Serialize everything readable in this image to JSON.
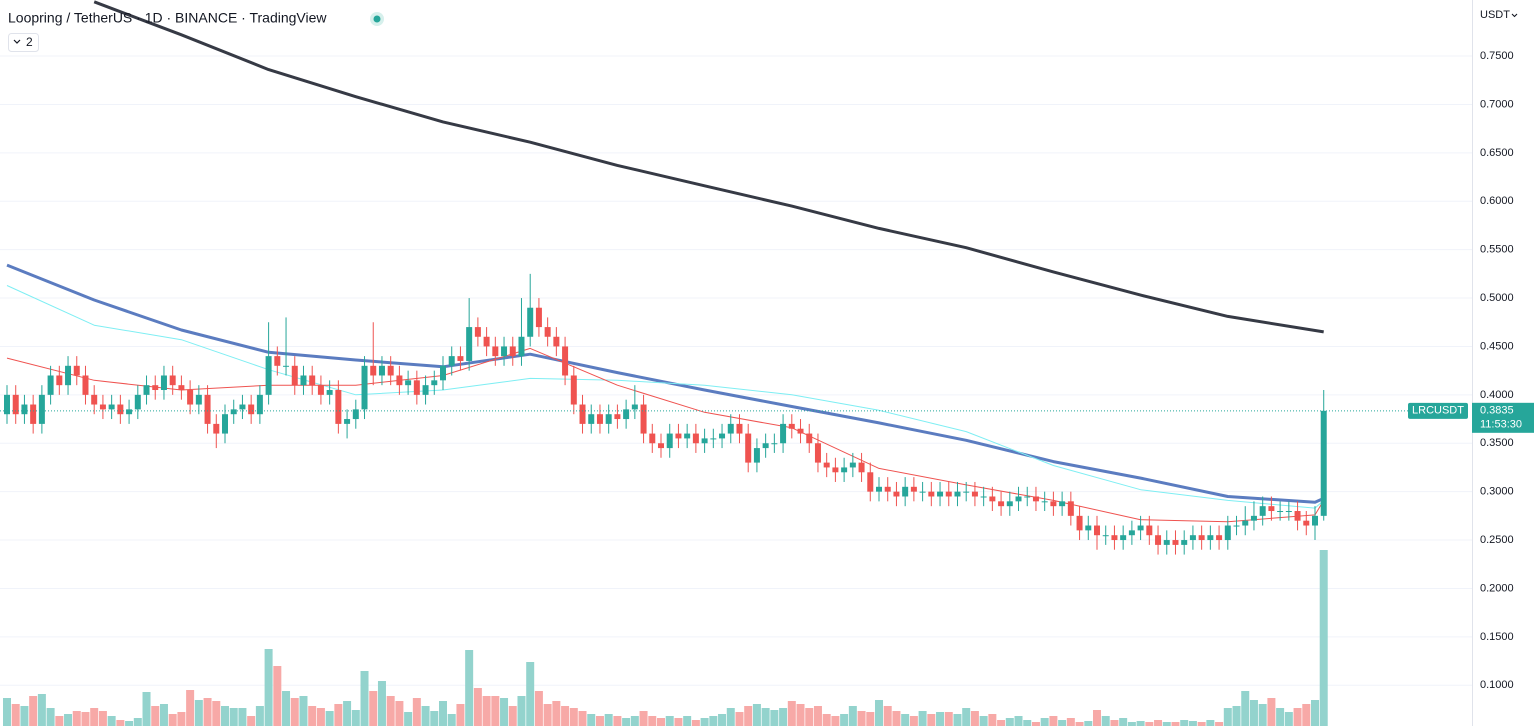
{
  "chart_data": {
    "type": "candlestick",
    "title": "Loopring / TetherUS · 1D · BINANCE · TradingView",
    "indicators_hidden": 2,
    "currency": "USDT",
    "symbol": "LRCUSDT",
    "countdown": "11:53:30",
    "last_price": {
      "value": 0.3835,
      "label": "0.3835"
    },
    "up_color": "#26a69a",
    "down_color": "#ef5350",
    "volume_up_color": "#93d3cd",
    "volume_down_color": "#f7a9a7",
    "grid": true,
    "ylim": [
      0.0579,
      0.8079
    ],
    "yticks": [
      {
        "value": 0.75,
        "label": "0.7500"
      },
      {
        "value": 0.7,
        "label": "0.7000"
      },
      {
        "value": 0.65,
        "label": "0.6500"
      },
      {
        "value": 0.6,
        "label": "0.6000"
      },
      {
        "value": 0.55,
        "label": "0.5500"
      },
      {
        "value": 0.5,
        "label": "0.5000"
      },
      {
        "value": 0.45,
        "label": "0.4500"
      },
      {
        "value": 0.4,
        "label": "0.4000"
      },
      {
        "value": 0.35,
        "label": "0.3500"
      },
      {
        "value": 0.3,
        "label": "0.3000"
      },
      {
        "value": 0.25,
        "label": "0.2500"
      },
      {
        "value": 0.2,
        "label": "0.2000"
      },
      {
        "value": 0.15,
        "label": "0.1500"
      },
      {
        "value": 0.1,
        "label": "0.1000"
      }
    ],
    "open": [
      0.38,
      0.4,
      0.38,
      0.39,
      0.37,
      0.4,
      0.42,
      0.41,
      0.43,
      0.42,
      0.4,
      0.39,
      0.385,
      0.39,
      0.38,
      0.385,
      0.4,
      0.41,
      0.405,
      0.42,
      0.41,
      0.405,
      0.39,
      0.4,
      0.37,
      0.36,
      0.38,
      0.385,
      0.39,
      0.38,
      0.4,
      0.44,
      0.43,
      0.43,
      0.41,
      0.42,
      0.41,
      0.4,
      0.405,
      0.37,
      0.375,
      0.385,
      0.43,
      0.42,
      0.43,
      0.42,
      0.41,
      0.415,
      0.4,
      0.41,
      0.415,
      0.43,
      0.44,
      0.435,
      0.47,
      0.46,
      0.45,
      0.44,
      0.45,
      0.44,
      0.46,
      0.49,
      0.47,
      0.46,
      0.45,
      0.42,
      0.39,
      0.37,
      0.38,
      0.37,
      0.38,
      0.375,
      0.385,
      0.39,
      0.36,
      0.35,
      0.345,
      0.36,
      0.355,
      0.36,
      0.35,
      0.355,
      0.355,
      0.36,
      0.37,
      0.36,
      0.33,
      0.345,
      0.35,
      0.35,
      0.37,
      0.365,
      0.36,
      0.35,
      0.33,
      0.325,
      0.32,
      0.325,
      0.33,
      0.32,
      0.3,
      0.305,
      0.3,
      0.295,
      0.305,
      0.3,
      0.3,
      0.295,
      0.3,
      0.295,
      0.3,
      0.3,
      0.295,
      0.295,
      0.29,
      0.285,
      0.29,
      0.295,
      0.295,
      0.29,
      0.29,
      0.285,
      0.29,
      0.275,
      0.26,
      0.265,
      0.255,
      0.255,
      0.25,
      0.255,
      0.26,
      0.265,
      0.255,
      0.245,
      0.25,
      0.245,
      0.25,
      0.255,
      0.25,
      0.255,
      0.25,
      0.265,
      0.265,
      0.27,
      0.275,
      0.285,
      0.28,
      0.28,
      0.28,
      0.27,
      0.265,
      0.275
    ],
    "high": [
      0.41,
      0.41,
      0.4,
      0.4,
      0.41,
      0.43,
      0.43,
      0.44,
      0.44,
      0.43,
      0.41,
      0.4,
      0.4,
      0.4,
      0.395,
      0.41,
      0.42,
      0.42,
      0.43,
      0.43,
      0.42,
      0.415,
      0.41,
      0.41,
      0.38,
      0.39,
      0.395,
      0.4,
      0.4,
      0.41,
      0.475,
      0.45,
      0.48,
      0.44,
      0.43,
      0.43,
      0.42,
      0.415,
      0.415,
      0.385,
      0.395,
      0.44,
      0.475,
      0.44,
      0.44,
      0.43,
      0.425,
      0.425,
      0.42,
      0.425,
      0.44,
      0.45,
      0.45,
      0.5,
      0.48,
      0.47,
      0.46,
      0.46,
      0.46,
      0.5,
      0.525,
      0.5,
      0.48,
      0.47,
      0.46,
      0.43,
      0.4,
      0.39,
      0.39,
      0.39,
      0.39,
      0.395,
      0.41,
      0.4,
      0.37,
      0.36,
      0.37,
      0.37,
      0.37,
      0.37,
      0.365,
      0.365,
      0.37,
      0.38,
      0.38,
      0.37,
      0.355,
      0.36,
      0.36,
      0.38,
      0.38,
      0.375,
      0.37,
      0.36,
      0.34,
      0.335,
      0.335,
      0.34,
      0.34,
      0.33,
      0.315,
      0.315,
      0.31,
      0.315,
      0.315,
      0.31,
      0.31,
      0.31,
      0.31,
      0.31,
      0.31,
      0.31,
      0.305,
      0.305,
      0.3,
      0.3,
      0.305,
      0.305,
      0.305,
      0.3,
      0.3,
      0.3,
      0.3,
      0.285,
      0.275,
      0.275,
      0.265,
      0.265,
      0.265,
      0.27,
      0.275,
      0.275,
      0.265,
      0.26,
      0.26,
      0.26,
      0.265,
      0.265,
      0.265,
      0.265,
      0.275,
      0.275,
      0.285,
      0.29,
      0.295,
      0.295,
      0.29,
      0.29,
      0.29,
      0.28,
      0.285,
      0.405
    ],
    "low": [
      0.37,
      0.37,
      0.37,
      0.36,
      0.36,
      0.39,
      0.4,
      0.4,
      0.41,
      0.39,
      0.38,
      0.375,
      0.375,
      0.37,
      0.37,
      0.375,
      0.39,
      0.395,
      0.395,
      0.4,
      0.395,
      0.38,
      0.38,
      0.36,
      0.345,
      0.35,
      0.37,
      0.375,
      0.37,
      0.37,
      0.39,
      0.42,
      0.42,
      0.4,
      0.4,
      0.4,
      0.39,
      0.39,
      0.36,
      0.355,
      0.365,
      0.375,
      0.41,
      0.41,
      0.41,
      0.4,
      0.4,
      0.39,
      0.39,
      0.4,
      0.405,
      0.42,
      0.425,
      0.425,
      0.45,
      0.44,
      0.43,
      0.43,
      0.43,
      0.43,
      0.45,
      0.46,
      0.45,
      0.44,
      0.41,
      0.38,
      0.36,
      0.36,
      0.36,
      0.36,
      0.365,
      0.365,
      0.375,
      0.35,
      0.34,
      0.335,
      0.335,
      0.345,
      0.345,
      0.34,
      0.34,
      0.345,
      0.345,
      0.35,
      0.35,
      0.32,
      0.32,
      0.335,
      0.34,
      0.34,
      0.355,
      0.35,
      0.34,
      0.32,
      0.315,
      0.31,
      0.31,
      0.315,
      0.31,
      0.29,
      0.29,
      0.29,
      0.285,
      0.285,
      0.29,
      0.29,
      0.285,
      0.285,
      0.285,
      0.285,
      0.29,
      0.285,
      0.285,
      0.28,
      0.275,
      0.275,
      0.28,
      0.285,
      0.28,
      0.28,
      0.275,
      0.275,
      0.265,
      0.25,
      0.25,
      0.24,
      0.245,
      0.24,
      0.24,
      0.245,
      0.25,
      0.245,
      0.235,
      0.235,
      0.235,
      0.235,
      0.24,
      0.24,
      0.24,
      0.24,
      0.24,
      0.255,
      0.255,
      0.26,
      0.265,
      0.27,
      0.27,
      0.27,
      0.26,
      0.255,
      0.25,
      0.27
    ],
    "close": [
      0.4,
      0.38,
      0.39,
      0.37,
      0.4,
      0.42,
      0.41,
      0.43,
      0.42,
      0.4,
      0.39,
      0.385,
      0.39,
      0.38,
      0.385,
      0.4,
      0.41,
      0.405,
      0.42,
      0.41,
      0.405,
      0.39,
      0.4,
      0.37,
      0.36,
      0.38,
      0.385,
      0.39,
      0.38,
      0.4,
      0.44,
      0.43,
      0.43,
      0.41,
      0.42,
      0.41,
      0.4,
      0.405,
      0.37,
      0.375,
      0.385,
      0.43,
      0.42,
      0.43,
      0.42,
      0.41,
      0.415,
      0.4,
      0.41,
      0.415,
      0.43,
      0.44,
      0.435,
      0.47,
      0.46,
      0.45,
      0.44,
      0.45,
      0.44,
      0.46,
      0.49,
      0.47,
      0.46,
      0.45,
      0.42,
      0.39,
      0.37,
      0.38,
      0.37,
      0.38,
      0.375,
      0.385,
      0.39,
      0.36,
      0.35,
      0.345,
      0.36,
      0.355,
      0.36,
      0.35,
      0.355,
      0.355,
      0.36,
      0.37,
      0.36,
      0.33,
      0.345,
      0.35,
      0.35,
      0.37,
      0.365,
      0.36,
      0.35,
      0.33,
      0.325,
      0.32,
      0.325,
      0.33,
      0.32,
      0.3,
      0.305,
      0.3,
      0.295,
      0.305,
      0.3,
      0.3,
      0.295,
      0.3,
      0.295,
      0.3,
      0.3,
      0.295,
      0.295,
      0.29,
      0.285,
      0.29,
      0.295,
      0.295,
      0.29,
      0.29,
      0.285,
      0.29,
      0.275,
      0.26,
      0.265,
      0.255,
      0.255,
      0.25,
      0.255,
      0.26,
      0.265,
      0.255,
      0.245,
      0.25,
      0.245,
      0.25,
      0.255,
      0.25,
      0.255,
      0.25,
      0.265,
      0.265,
      0.27,
      0.275,
      0.285,
      0.28,
      0.28,
      0.28,
      0.27,
      0.265,
      0.275,
      0.3835
    ],
    "volume": [
      28,
      22,
      20,
      30,
      32,
      18,
      10,
      12,
      15,
      14,
      18,
      15,
      10,
      6,
      5,
      8,
      34,
      20,
      22,
      12,
      14,
      36,
      26,
      28,
      25,
      20,
      18,
      18,
      10,
      20,
      77,
      60,
      35,
      28,
      30,
      20,
      18,
      15,
      22,
      25,
      16,
      55,
      35,
      45,
      30,
      25,
      14,
      28,
      20,
      15,
      25,
      12,
      22,
      76,
      38,
      30,
      30,
      28,
      20,
      30,
      64,
      35,
      22,
      25,
      20,
      18,
      15,
      12,
      10,
      12,
      10,
      8,
      10,
      15,
      10,
      8,
      10,
      8,
      10,
      6,
      8,
      10,
      12,
      18,
      14,
      20,
      22,
      18,
      16,
      18,
      25,
      22,
      18,
      20,
      12,
      10,
      12,
      20,
      15,
      14,
      26,
      20,
      15,
      12,
      10,
      15,
      12,
      14,
      14,
      12,
      18,
      15,
      10,
      12,
      6,
      8,
      10,
      6,
      4,
      8,
      10,
      6,
      8,
      4,
      5,
      16,
      10,
      6,
      8,
      4,
      5,
      4,
      6,
      4,
      4,
      6,
      5,
      4,
      6,
      4,
      18,
      20,
      35,
      26,
      22,
      28,
      18,
      14,
      18,
      22,
      26,
      176
    ],
    "series": [
      {
        "color": "#363a45",
        "width": 3,
        "x": [
          10,
          20,
          30,
          40,
          50,
          60,
          70,
          80,
          90,
          100,
          110,
          120,
          130,
          140,
          151
        ],
        "values": [
          0.806,
          0.772,
          0.736,
          0.708,
          0.682,
          0.661,
          0.637,
          0.616,
          0.595,
          0.572,
          0.552,
          0.527,
          0.503,
          0.481,
          0.465
        ]
      },
      {
        "color": "#5b7cc0",
        "width": 3,
        "x": [
          0,
          10,
          20,
          30,
          40,
          50,
          60,
          70,
          80,
          90,
          100,
          110,
          120,
          130,
          140,
          150,
          151
        ],
        "values": [
          0.534,
          0.498,
          0.467,
          0.444,
          0.436,
          0.429,
          0.442,
          0.423,
          0.405,
          0.388,
          0.371,
          0.353,
          0.331,
          0.314,
          0.295,
          0.289,
          0.293
        ]
      },
      {
        "color": "#7eeef3",
        "width": 1,
        "x": [
          0,
          10,
          20,
          30,
          40,
          50,
          60,
          70,
          80,
          90,
          100,
          110,
          120,
          130,
          140,
          150,
          151
        ],
        "values": [
          0.513,
          0.472,
          0.457,
          0.426,
          0.4,
          0.405,
          0.417,
          0.415,
          0.41,
          0.4,
          0.384,
          0.362,
          0.327,
          0.302,
          0.291,
          0.283,
          0.291
        ]
      },
      {
        "color": "#ef5350",
        "width": 1,
        "x": [
          0,
          10,
          20,
          30,
          40,
          50,
          60,
          70,
          80,
          90,
          100,
          110,
          120,
          130,
          140,
          150,
          151
        ],
        "values": [
          0.438,
          0.415,
          0.405,
          0.41,
          0.41,
          0.42,
          0.448,
          0.41,
          0.382,
          0.366,
          0.324,
          0.307,
          0.291,
          0.271,
          0.269,
          0.276,
          0.291
        ]
      }
    ]
  }
}
